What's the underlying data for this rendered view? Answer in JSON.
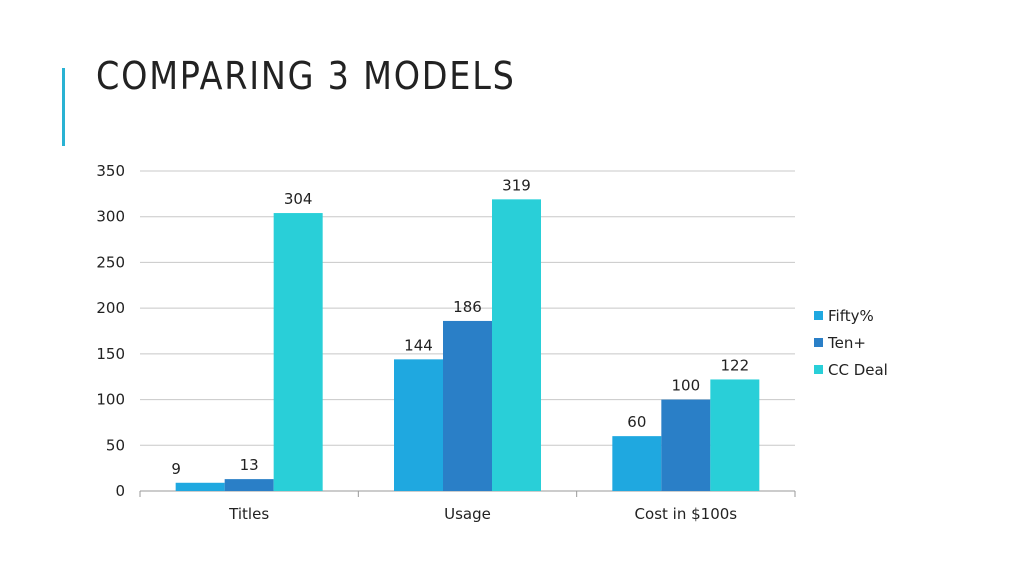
{
  "slide": {
    "title": "COMPARING 3 MODELS",
    "accent_color": "#29b2d3"
  },
  "chart_data": {
    "type": "bar",
    "categories": [
      "Titles",
      "Usage",
      "Cost in $100s"
    ],
    "series": [
      {
        "name": "Fifty%",
        "values": [
          9,
          144,
          60
        ],
        "color": "#1fa8e0"
      },
      {
        "name": "Ten+",
        "values": [
          13,
          186,
          100
        ],
        "color": "#2a7fc7"
      },
      {
        "name": "CC Deal",
        "values": [
          304,
          319,
          122
        ],
        "color": "#29cfd8"
      }
    ],
    "ylim": [
      0,
      350
    ],
    "yticks": [
      0,
      50,
      100,
      150,
      200,
      250,
      300,
      350
    ],
    "grid": true,
    "legend": "right",
    "data_labels": true
  }
}
